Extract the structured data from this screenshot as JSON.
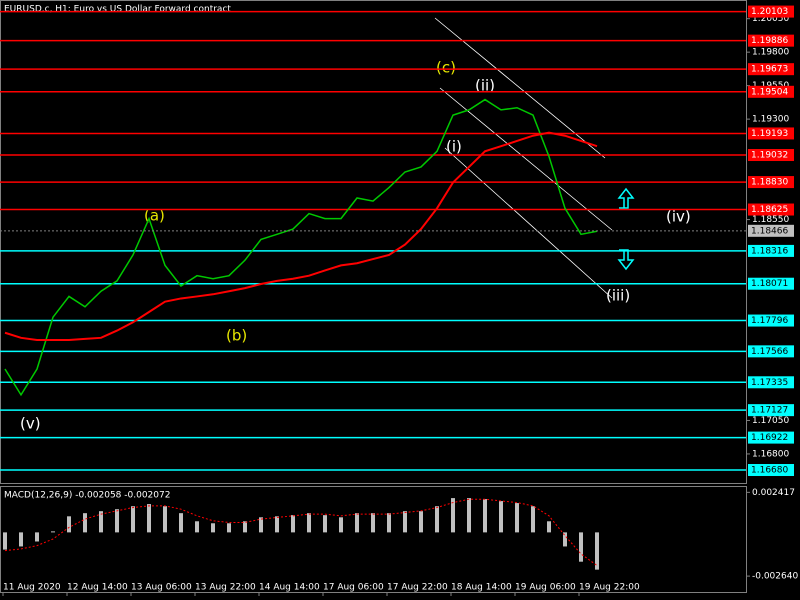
{
  "chart_data": [
    {
      "type": "price",
      "title": "EURUSD.c, H1:  Euro vs US Dollar Forward contract",
      "categories": [
        "11 Aug 2020",
        null,
        null,
        null,
        "12 Aug 14:00",
        null,
        null,
        null,
        "13 Aug 06:00",
        null,
        null,
        null,
        "13 Aug 22:00",
        null,
        null,
        null,
        "14 Aug 14:00",
        null,
        null,
        null,
        "17 Aug 06:00",
        null,
        null,
        null,
        "17 Aug 22:00",
        null,
        null,
        null,
        "18 Aug 14:00",
        null,
        null,
        null,
        "19 Aug 06:00",
        null,
        null,
        null,
        "19 Aug 22:00",
        null
      ],
      "series": [
        {
          "color": "#00c800",
          "values": [
            1.17434,
            1.17241,
            1.17434,
            1.17821,
            1.17976,
            1.17899,
            1.18015,
            1.18092,
            1.18286,
            1.18557,
            1.18208,
            1.18054,
            1.18131,
            1.18108,
            1.18131,
            1.18247,
            1.18402,
            1.1844,
            1.18479,
            1.18595,
            1.18557,
            1.18557,
            1.18711,
            1.18688,
            1.18789,
            1.18905,
            1.18943,
            1.1906,
            1.1933,
            1.19369,
            1.19446,
            1.19369,
            1.19385,
            1.1933,
            1.19021,
            1.18634,
            1.1844,
            1.18463
          ]
        },
        {
          "color": "#ff0000",
          "values": [
            1.17705,
            1.17667,
            1.17651,
            1.17651,
            1.17651,
            1.17659,
            1.17667,
            1.17721,
            1.17783,
            1.1786,
            1.17937,
            1.17961,
            1.17976,
            1.17992,
            1.18015,
            1.18038,
            1.18069,
            1.18092,
            1.18108,
            1.18131,
            1.1817,
            1.18208,
            1.18224,
            1.18255,
            1.18286,
            1.18363,
            1.18479,
            1.18634,
            1.18827,
            1.18943,
            1.1906,
            1.19098,
            1.19137,
            1.19176,
            1.19199,
            1.19176,
            1.19137,
            1.19098
          ]
        }
      ],
      "ylim": [
        1.16583,
        1.20182
      ],
      "yticks": [
        {
          "value": 1.2005,
          "label": "1.20050"
        },
        {
          "value": 1.198,
          "label": "1.19800"
        },
        {
          "value": 1.1955,
          "label": "1.19550"
        },
        {
          "value": 1.193,
          "label": "1.19300"
        },
        {
          "value": 1.1855,
          "label": "1.18550"
        },
        {
          "value": 1.1705,
          "label": "1.17050"
        },
        {
          "value": 1.168,
          "label": "1.16800"
        }
      ],
      "red_levels": {
        "color": "#ff0000",
        "text_color": "#ffffff",
        "values": [
          1.20103,
          1.19886,
          1.19673,
          1.19504,
          1.19193,
          1.19032,
          1.1883,
          1.18625
        ],
        "value_labels": [
          "1.20103",
          "1.19886",
          "1.19673",
          "1.19504",
          "1.19193",
          "1.19032",
          "1.18830",
          "1.18625"
        ]
      },
      "cyan_levels": {
        "color": "#00ffff",
        "text_color": "#000000",
        "values": [
          1.18316,
          1.18071,
          1.17796,
          1.17566,
          1.17335,
          1.17127,
          1.16922,
          1.1668
        ],
        "value_labels": [
          "1.18316",
          "1.18071",
          "1.17796",
          "1.17566",
          "1.17335",
          "1.17127",
          "1.16922",
          "1.16680"
        ]
      },
      "last_price": {
        "value": 1.18466,
        "label": "1.18466"
      },
      "annotations": [
        "(c)",
        "(ii)",
        "(i)",
        "(a)",
        "(b)",
        "(v)",
        "(iv)",
        "(iii)"
      ]
    },
    {
      "type": "macd",
      "title": "MACD(12,26,9) -0.002058 -0.002072",
      "series": [
        {
          "color": "#c0c0c0",
          "values": [
            -0.00104,
            -0.00085,
            -0.00055,
            6e-05,
            0.00097,
            0.00116,
            0.00128,
            0.0014,
            0.00158,
            0.00171,
            0.00158,
            0.00116,
            0.00067,
            0.00055,
            0.00055,
            0.00067,
            0.00091,
            0.00097,
            0.00104,
            0.00116,
            0.00104,
            0.00091,
            0.00116,
            0.00116,
            0.00116,
            0.00128,
            0.00128,
            0.00158,
            0.00207,
            0.00207,
            0.00201,
            0.00189,
            0.00177,
            0.00158,
            0.00067,
            -0.00085,
            -0.00177,
            -0.00225
          ]
        },
        {
          "color": "#ff0000",
          "values": [
            -0.0011,
            -0.001,
            -0.0008,
            -0.0004,
            0.0003,
            0.0008,
            0.0011,
            0.0013,
            0.0015,
            0.0016,
            0.0016,
            0.0014,
            0.001,
            0.0007,
            0.0006,
            0.0006,
            0.0008,
            0.0009,
            0.001,
            0.0011,
            0.0011,
            0.001,
            0.0011,
            0.0011,
            0.0011,
            0.0012,
            0.0013,
            0.0015,
            0.0018,
            0.002,
            0.002,
            0.0019,
            0.0018,
            0.0016,
            0.001,
            -0.0002,
            -0.0013,
            -0.002
          ]
        }
      ],
      "ylim": [
        -0.0036,
        0.00274
      ],
      "yticks": [
        0.002417,
        {
          "value": -0.00264,
          "label": "-0.002640"
        }
      ]
    }
  ]
}
